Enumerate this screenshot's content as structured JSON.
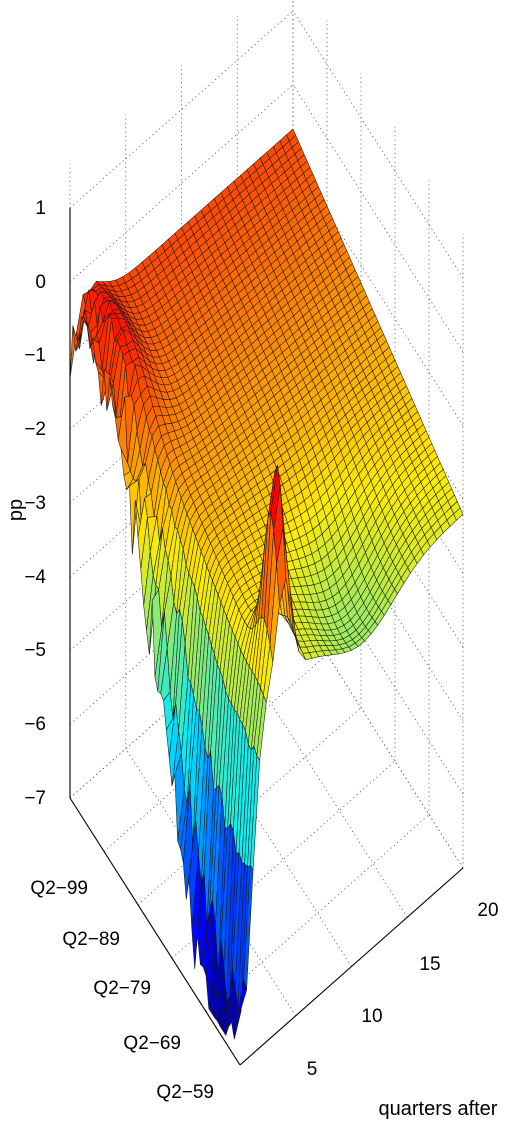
{
  "chart_data": {
    "type": "surface3d",
    "title": "",
    "zlabel": "pp",
    "xlabel": "quarters after",
    "ylabel": "",
    "zlim": [
      -7,
      1
    ],
    "xlim": [
      0,
      20
    ],
    "z_ticks": [
      "1",
      "0",
      "−1",
      "−2",
      "−3",
      "−4",
      "−5",
      "−6",
      "−7"
    ],
    "x_ticks": [
      "5",
      "10",
      "15",
      "20"
    ],
    "y_ticks": [
      "Q2−59",
      "Q2−69",
      "Q2−79",
      "Q2−89",
      "Q2−99"
    ],
    "grid": true,
    "colormap": "jet",
    "notable_features": {
      "minimum_pp": -6.9,
      "maximum_pp": 1.1,
      "peak_horizon_quarters": 4,
      "peak_value_pp": 0.3
    }
  }
}
